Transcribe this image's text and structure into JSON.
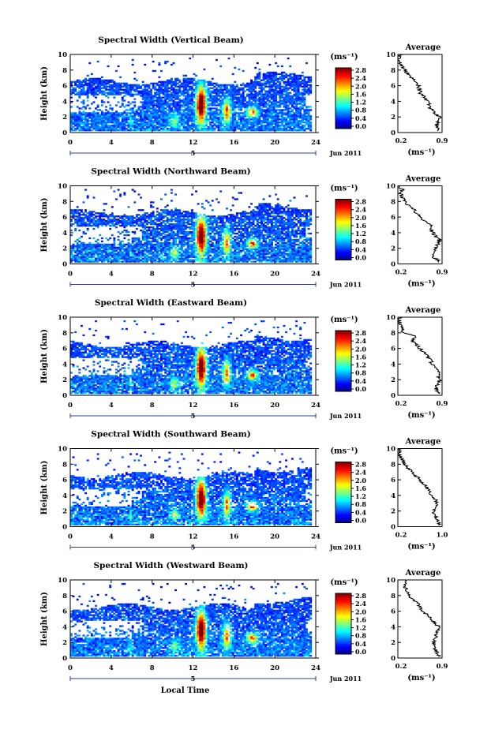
{
  "figure": {
    "xlabel": "Local Time",
    "date_label": "5",
    "month_label": "Jun 2011",
    "colorbar_unit": "(ms⁻¹)",
    "colorbar_ticks": [
      "0.0",
      "0.4",
      "0.8",
      "1.2",
      "1.6",
      "2.0",
      "2.4",
      "2.8"
    ],
    "average_title": "Average",
    "average_xlabel": "(ms⁻¹)",
    "ylabel": "Height (km)"
  },
  "chart_data": [
    {
      "type": "heatmap",
      "title": "Spectral Width (Vertical Beam)",
      "xlabel": "Local Time",
      "ylabel": "Height (km)",
      "xlim": [
        0,
        24
      ],
      "ylim": [
        0,
        10
      ],
      "xticks": [
        0,
        4,
        8,
        12,
        16,
        20,
        24
      ],
      "yticks": [
        0,
        2,
        4,
        6,
        8,
        10
      ],
      "color_range": [
        0.0,
        2.8
      ],
      "profile": {
        "title": "Average",
        "xlabel": "(ms⁻¹)",
        "xlim": [
          0.2,
          0.9
        ],
        "xtick_labels": [
          "0.2",
          "0.9"
        ],
        "heights": [
          0.2,
          1,
          2,
          3,
          4,
          5,
          6,
          7,
          8,
          8.6,
          9.2,
          10
        ],
        "values": [
          0.85,
          0.82,
          0.86,
          0.72,
          0.68,
          0.56,
          0.52,
          0.42,
          0.31,
          0.24,
          0.22,
          0.22
        ]
      }
    },
    {
      "type": "heatmap",
      "title": "Spectral Width (Northward Beam)",
      "xlabel": "Local Time",
      "ylabel": "Height (km)",
      "xlim": [
        0,
        24
      ],
      "ylim": [
        0,
        10
      ],
      "xticks": [
        0,
        4,
        8,
        12,
        16,
        20,
        24
      ],
      "yticks": [
        0,
        2,
        4,
        6,
        8,
        10
      ],
      "color_range": [
        0.0,
        2.8
      ],
      "profile": {
        "title": "Average",
        "xlabel": "(ms⁻¹)",
        "xlim": [
          0.2,
          0.9
        ],
        "xtick_labels": [
          "0.2",
          "0.9"
        ],
        "heights": [
          0.2,
          1,
          2,
          3,
          4,
          5,
          6,
          7,
          8,
          9,
          9.5,
          10
        ],
        "values": [
          0.86,
          0.75,
          0.8,
          0.86,
          0.75,
          0.72,
          0.55,
          0.45,
          0.3,
          0.24,
          0.28,
          0.22
        ]
      }
    },
    {
      "type": "heatmap",
      "title": "Spectral Width (Eastward Beam)",
      "xlabel": "Local Time",
      "ylabel": "Height (km)",
      "xlim": [
        0,
        24
      ],
      "ylim": [
        0,
        10
      ],
      "xticks": [
        0,
        4,
        8,
        12,
        16,
        20,
        24
      ],
      "yticks": [
        0,
        2,
        4,
        6,
        8,
        10
      ],
      "color_range": [
        0.0,
        2.8
      ],
      "profile": {
        "title": "Average",
        "xlabel": "(ms⁻¹)",
        "xlim": [
          0.2,
          0.9
        ],
        "xtick_labels": [
          "0.2",
          "0.9"
        ],
        "heights": [
          0.2,
          1,
          2,
          3,
          4,
          5,
          6,
          7,
          7.6,
          8,
          9,
          10
        ],
        "values": [
          0.86,
          0.8,
          0.86,
          0.83,
          0.75,
          0.66,
          0.55,
          0.42,
          0.5,
          0.28,
          0.24,
          0.22
        ]
      }
    },
    {
      "type": "heatmap",
      "title": "Spectral Width (Southward Beam)",
      "xlabel": "Local Time",
      "ylabel": "Height (km)",
      "xlim": [
        0,
        24
      ],
      "ylim": [
        0,
        10
      ],
      "xticks": [
        0,
        4,
        8,
        12,
        16,
        20,
        24
      ],
      "yticks": [
        0,
        2,
        4,
        6,
        8,
        10
      ],
      "color_range": [
        0.0,
        2.8
      ],
      "profile": {
        "title": "Average",
        "xlabel": "(ms⁻¹)",
        "xlim": [
          0.2,
          1.0
        ],
        "xtick_labels": [
          "0.2",
          "1.0"
        ],
        "heights": [
          0.2,
          1,
          2,
          3,
          4,
          5,
          6,
          7,
          8,
          9,
          10
        ],
        "values": [
          0.95,
          0.9,
          0.85,
          0.92,
          0.82,
          0.72,
          0.6,
          0.45,
          0.33,
          0.24,
          0.22
        ]
      }
    },
    {
      "type": "heatmap",
      "title": "Spectral Width (Westward Beam)",
      "xlabel": "Local Time",
      "ylabel": "Height (km)",
      "xlim": [
        0,
        24
      ],
      "ylim": [
        0,
        10
      ],
      "xticks": [
        0,
        4,
        8,
        12,
        16,
        20,
        24
      ],
      "yticks": [
        0,
        2,
        4,
        6,
        8,
        10
      ],
      "color_range": [
        0.0,
        2.8
      ],
      "profile": {
        "title": "Average",
        "xlabel": "(ms⁻¹)",
        "xlim": [
          0.1,
          0.9
        ],
        "xtick_labels": [
          "0.2",
          "0.9"
        ],
        "heights": [
          0.2,
          1,
          2,
          3,
          4,
          5,
          6,
          7,
          8,
          9,
          10
        ],
        "values": [
          0.85,
          0.78,
          0.75,
          0.8,
          0.84,
          0.7,
          0.56,
          0.45,
          0.3,
          0.24,
          0.22
        ]
      }
    }
  ]
}
